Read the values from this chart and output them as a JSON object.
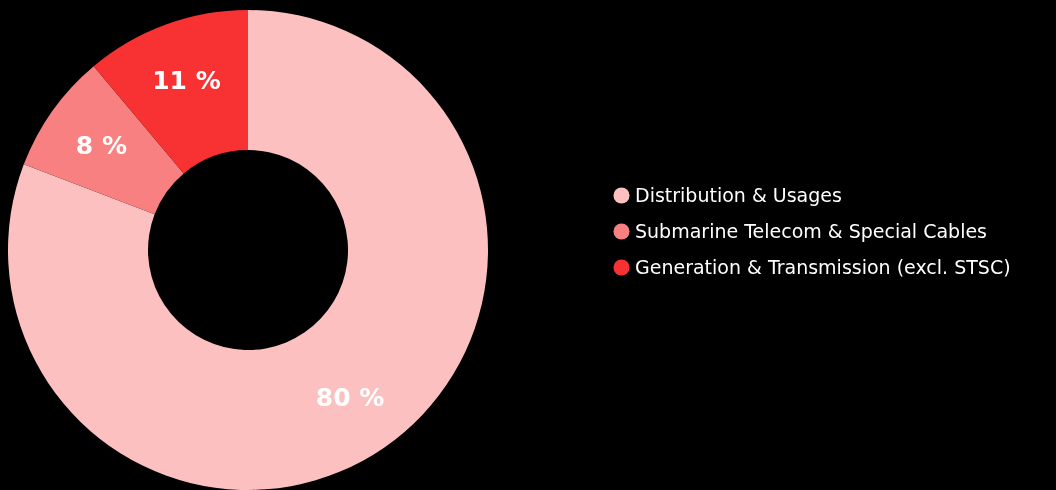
{
  "chart_data": {
    "type": "donut",
    "categories": [
      "Distribution & Usages",
      "Submarine Telecom & Special Cables",
      "Generation & Transmission (excl. STSC)"
    ],
    "values": [
      80,
      8,
      11
    ],
    "colors": [
      "#fcc0c0",
      "#f98080",
      "#f83232"
    ],
    "value_labels": [
      "80 %",
      "8 %",
      "11 %"
    ],
    "legend": "right"
  }
}
